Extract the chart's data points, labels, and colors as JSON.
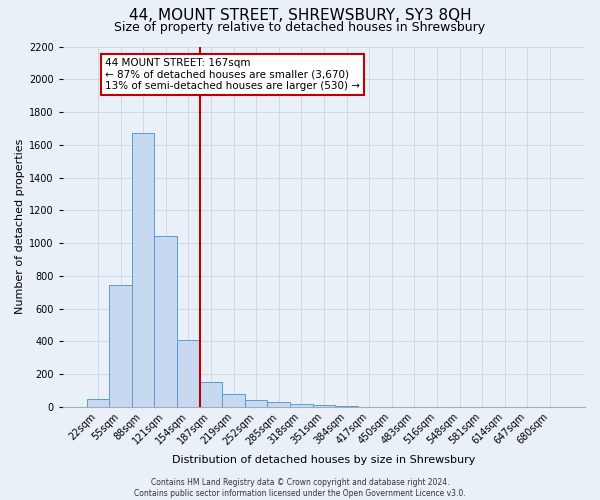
{
  "title": "44, MOUNT STREET, SHREWSBURY, SY3 8QH",
  "subtitle": "Size of property relative to detached houses in Shrewsbury",
  "bar_labels": [
    "22sqm",
    "55sqm",
    "88sqm",
    "121sqm",
    "154sqm",
    "187sqm",
    "219sqm",
    "252sqm",
    "285sqm",
    "318sqm",
    "351sqm",
    "384sqm",
    "417sqm",
    "450sqm",
    "483sqm",
    "516sqm",
    "548sqm",
    "581sqm",
    "614sqm",
    "647sqm",
    "680sqm"
  ],
  "bar_values": [
    50,
    745,
    1670,
    1040,
    410,
    150,
    80,
    40,
    30,
    20,
    10,
    5,
    0,
    0,
    0,
    0,
    0,
    0,
    0,
    0,
    0
  ],
  "bar_color": "#c6d9f0",
  "bar_edge_color": "#5b9bd5",
  "grid_color": "#d0d8e8",
  "background_color": "#eaf0f8",
  "vline_color": "#c00000",
  "vline_x": 4.5,
  "annotation_title": "44 MOUNT STREET: 167sqm",
  "annotation_line1": "← 87% of detached houses are smaller (3,670)",
  "annotation_line2": "13% of semi-detached houses are larger (530) →",
  "annotation_box_color": "#c00000",
  "ylabel": "Number of detached properties",
  "xlabel": "Distribution of detached houses by size in Shrewsbury",
  "ylim": [
    0,
    2200
  ],
  "yticks": [
    0,
    200,
    400,
    600,
    800,
    1000,
    1200,
    1400,
    1600,
    1800,
    2000,
    2200
  ],
  "footer_line1": "Contains HM Land Registry data © Crown copyright and database right 2024.",
  "footer_line2": "Contains public sector information licensed under the Open Government Licence v3.0.",
  "title_fontsize": 11,
  "subtitle_fontsize": 9,
  "xlabel_fontsize": 8,
  "ylabel_fontsize": 8,
  "tick_fontsize": 7,
  "annotation_fontsize": 7.5,
  "footer_fontsize": 5.5
}
